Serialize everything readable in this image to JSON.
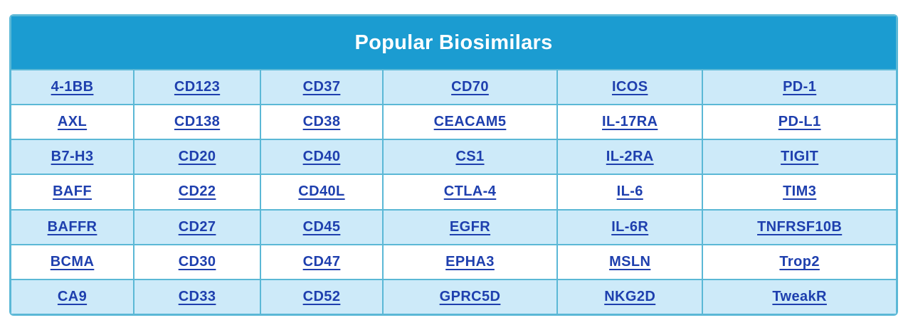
{
  "title": "Popular Biosimilars",
  "colors": {
    "header_background": "#1b9cd1",
    "header_text": "#ffffff",
    "row_alt_background": "#cdeaf9",
    "row_background": "#ffffff",
    "border": "#5bb8d6",
    "link": "#1e3fae"
  },
  "table": {
    "columns": 6,
    "column_widths_pct": [
      13.9,
      14.3,
      13.8,
      19.7,
      16.4,
      21.9
    ],
    "rows": [
      [
        "4-1BB",
        "CD123",
        "CD37",
        "CD70",
        "ICOS",
        "PD-1"
      ],
      [
        "AXL",
        "CD138",
        "CD38",
        "CEACAM5",
        "IL-17RA",
        "PD-L1"
      ],
      [
        "B7-H3",
        "CD20",
        "CD40",
        "CS1",
        "IL-2RA",
        "TIGIT"
      ],
      [
        "BAFF",
        "CD22",
        "CD40L",
        "CTLA-4",
        "IL-6",
        "TIM3"
      ],
      [
        "BAFFR",
        "CD27",
        "CD45",
        "EGFR",
        "IL-6R",
        "TNFRSF10B"
      ],
      [
        "BCMA",
        "CD30",
        "CD47",
        "EPHA3",
        "MSLN",
        "Trop2"
      ],
      [
        "CA9",
        "CD33",
        "CD52",
        "GPRC5D",
        "NKG2D",
        "TweakR"
      ]
    ]
  }
}
